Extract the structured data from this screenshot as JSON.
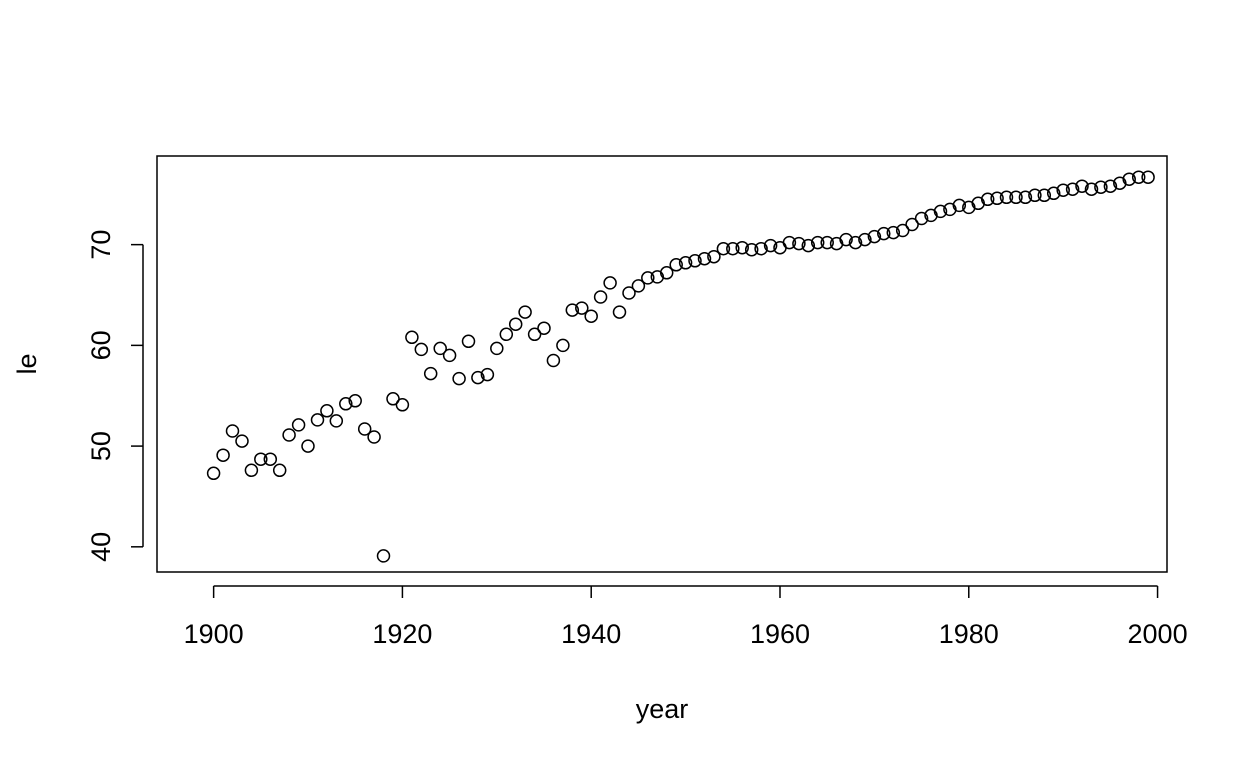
{
  "chart_data": {
    "type": "scatter",
    "title": "",
    "xlabel": "year",
    "ylabel": "le",
    "xlim": [
      1894,
      2001
    ],
    "ylim": [
      37.5,
      78.8
    ],
    "xticks": [
      1900,
      1920,
      1940,
      1960,
      1980,
      2000
    ],
    "yticks": [
      40,
      50,
      60,
      70
    ],
    "grid": false,
    "marker_color": "#000000",
    "x": [
      1900,
      1901,
      1902,
      1903,
      1904,
      1905,
      1906,
      1907,
      1908,
      1909,
      1910,
      1911,
      1912,
      1913,
      1914,
      1915,
      1916,
      1917,
      1918,
      1919,
      1920,
      1921,
      1922,
      1923,
      1924,
      1925,
      1926,
      1927,
      1928,
      1929,
      1930,
      1931,
      1932,
      1933,
      1934,
      1935,
      1936,
      1937,
      1938,
      1939,
      1940,
      1941,
      1942,
      1943,
      1944,
      1945,
      1946,
      1947,
      1948,
      1949,
      1950,
      1951,
      1952,
      1953,
      1954,
      1955,
      1956,
      1957,
      1958,
      1959,
      1960,
      1961,
      1962,
      1963,
      1964,
      1965,
      1966,
      1967,
      1968,
      1969,
      1970,
      1971,
      1972,
      1973,
      1974,
      1975,
      1976,
      1977,
      1978,
      1979,
      1980,
      1981,
      1982,
      1983,
      1984,
      1985,
      1986,
      1987,
      1988,
      1989,
      1990,
      1991,
      1992,
      1993,
      1994,
      1995,
      1996,
      1997,
      1998,
      1999
    ],
    "y": [
      47.3,
      49.1,
      51.5,
      50.5,
      47.6,
      48.7,
      48.7,
      47.6,
      51.1,
      52.1,
      50.0,
      52.6,
      53.5,
      52.5,
      54.2,
      54.5,
      51.7,
      50.9,
      39.1,
      54.7,
      54.1,
      60.8,
      59.6,
      57.2,
      59.7,
      59.0,
      56.7,
      60.4,
      56.8,
      57.1,
      59.7,
      61.1,
      62.1,
      63.3,
      61.1,
      61.7,
      58.5,
      60.0,
      63.5,
      63.7,
      62.9,
      64.8,
      66.2,
      63.3,
      65.2,
      65.9,
      66.7,
      66.8,
      67.2,
      68.0,
      68.2,
      68.4,
      68.6,
      68.8,
      69.6,
      69.6,
      69.7,
      69.5,
      69.6,
      69.9,
      69.7,
      70.2,
      70.1,
      69.9,
      70.2,
      70.2,
      70.1,
      70.5,
      70.2,
      70.5,
      70.8,
      71.1,
      71.2,
      71.4,
      72.0,
      72.6,
      72.9,
      73.3,
      73.5,
      73.9,
      73.7,
      74.1,
      74.5,
      74.6,
      74.7,
      74.7,
      74.7,
      74.9,
      74.9,
      75.1,
      75.4,
      75.5,
      75.8,
      75.5,
      75.7,
      75.8,
      76.1,
      76.5,
      76.7,
      76.7
    ]
  }
}
